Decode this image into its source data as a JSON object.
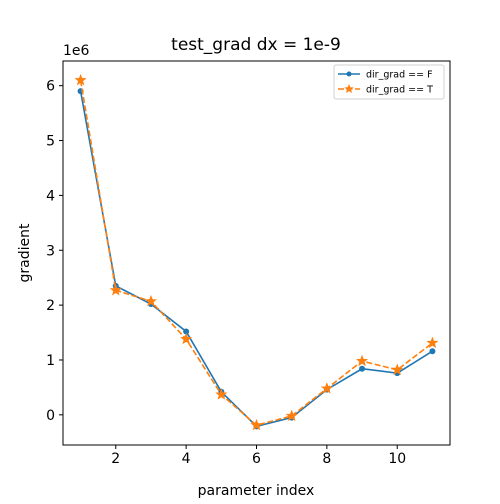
{
  "chart_data": {
    "type": "line",
    "title": "test_grad dx = 1e-9",
    "xlabel": "parameter index",
    "ylabel": "gradient",
    "y_offset_label": "1e6",
    "xlim": [
      0.5,
      11.5
    ],
    "ylim": [
      -0.55,
      6.45
    ],
    "xticks": [
      2,
      4,
      6,
      8,
      10
    ],
    "yticks": [
      0,
      1,
      2,
      3,
      4,
      5,
      6
    ],
    "grid": false,
    "legend_position": "top-right",
    "x": [
      1,
      2,
      3,
      4,
      5,
      6,
      7,
      8,
      9,
      10,
      11
    ],
    "series": [
      {
        "name": "dir_grad == F",
        "values": [
          5.9,
          2.35,
          2.02,
          1.52,
          0.42,
          -0.21,
          -0.05,
          0.46,
          0.84,
          0.76,
          1.16
        ],
        "color": "#1f77b4",
        "line_style": "solid",
        "marker": "circle"
      },
      {
        "name": "dir_grad == T",
        "values": [
          6.1,
          2.27,
          2.07,
          1.38,
          0.37,
          -0.19,
          -0.02,
          0.48,
          0.98,
          0.82,
          1.31
        ],
        "color": "#ff7f0e",
        "line_style": "dashed",
        "marker": "star"
      }
    ]
  }
}
